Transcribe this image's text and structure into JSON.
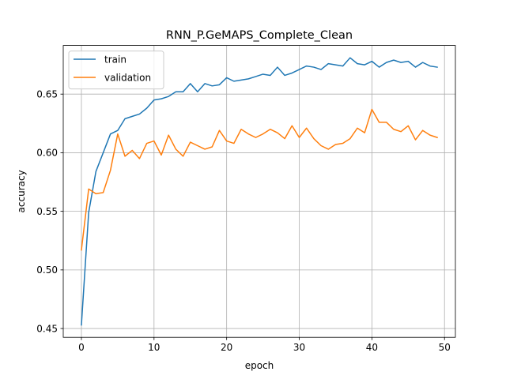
{
  "chart_data": {
    "type": "line",
    "title": "RNN_P.GeMAPS_Complete_Clean",
    "xlabel": "epoch",
    "ylabel": "accuracy",
    "xlim": [
      -2.5,
      51.5
    ],
    "ylim": [
      0.4425,
      0.6915
    ],
    "xticks": [
      0,
      10,
      20,
      30,
      40,
      50
    ],
    "yticks": [
      0.45,
      0.5,
      0.55,
      0.6,
      0.65
    ],
    "ytick_labels": [
      "0.45",
      "0.50",
      "0.55",
      "0.60",
      "0.65"
    ],
    "grid": true,
    "legend_position": "upper-left",
    "x": [
      0,
      1,
      2,
      3,
      4,
      5,
      6,
      7,
      8,
      9,
      10,
      11,
      12,
      13,
      14,
      15,
      16,
      17,
      18,
      19,
      20,
      21,
      22,
      23,
      24,
      25,
      26,
      27,
      28,
      29,
      30,
      31,
      32,
      33,
      34,
      35,
      36,
      37,
      38,
      39,
      40,
      41,
      42,
      43,
      44,
      45,
      46,
      47,
      48,
      49
    ],
    "series": [
      {
        "name": "train",
        "color": "#1f77b4",
        "values": [
          0.453,
          0.549,
          0.584,
          0.6,
          0.616,
          0.619,
          0.629,
          0.631,
          0.633,
          0.638,
          0.645,
          0.646,
          0.648,
          0.652,
          0.652,
          0.659,
          0.652,
          0.659,
          0.657,
          0.658,
          0.664,
          0.661,
          0.662,
          0.663,
          0.665,
          0.667,
          0.666,
          0.673,
          0.666,
          0.668,
          0.671,
          0.674,
          0.673,
          0.671,
          0.676,
          0.675,
          0.674,
          0.681,
          0.676,
          0.675,
          0.678,
          0.673,
          0.677,
          0.679,
          0.677,
          0.678,
          0.673,
          0.677,
          0.674,
          0.673
        ]
      },
      {
        "name": "validation",
        "color": "#ff7f0e",
        "values": [
          0.517,
          0.569,
          0.565,
          0.566,
          0.585,
          0.616,
          0.597,
          0.602,
          0.595,
          0.608,
          0.61,
          0.598,
          0.615,
          0.603,
          0.597,
          0.609,
          0.606,
          0.603,
          0.605,
          0.619,
          0.61,
          0.608,
          0.62,
          0.616,
          0.613,
          0.616,
          0.62,
          0.617,
          0.612,
          0.623,
          0.613,
          0.621,
          0.612,
          0.606,
          0.603,
          0.607,
          0.608,
          0.612,
          0.621,
          0.617,
          0.637,
          0.626,
          0.626,
          0.62,
          0.618,
          0.623,
          0.611,
          0.619,
          0.615,
          0.613
        ]
      }
    ]
  }
}
